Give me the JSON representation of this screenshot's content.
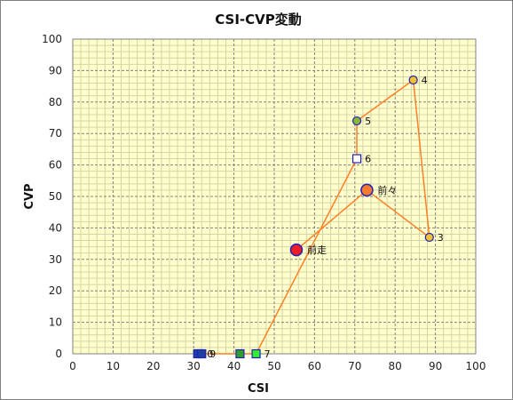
{
  "colors": {
    "plot_bg": "#ffffcc",
    "grid_major": "#808080",
    "grid_minor": "#d4d4a8",
    "line": "#ff7f27",
    "marker_edge": "#1f1fbf",
    "circle_fill": "#f2c12e",
    "circle_green": "#8ab832",
    "red": "#ee1c24",
    "orange": "#f47c2c",
    "square_blue": "#1f3f9f",
    "square_green": "#2e9f2e",
    "square_lime": "#33ee33",
    "white": "#ffffff"
  },
  "chart_data": {
    "type": "scatter",
    "title": "CSI-CVP変動",
    "xlabel": "CSI",
    "ylabel": "CVP",
    "xlim": [
      0,
      100
    ],
    "ylim": [
      0,
      100
    ],
    "x_ticks": [
      "0",
      "10",
      "20",
      "30",
      "40",
      "50",
      "60",
      "70",
      "80",
      "90",
      "100"
    ],
    "y_ticks": [
      "0",
      "10",
      "20",
      "30",
      "40",
      "50",
      "60",
      "70",
      "80",
      "90",
      "100"
    ],
    "grid": true,
    "path": [
      {
        "x": 55.5,
        "y": 33
      },
      {
        "x": 73,
        "y": 52
      },
      {
        "x": 88.5,
        "y": 37
      },
      {
        "x": 84.5,
        "y": 87
      },
      {
        "x": 70.5,
        "y": 74
      },
      {
        "x": 70.5,
        "y": 62
      },
      {
        "x": 45.5,
        "y": 0
      },
      {
        "x": 41.5,
        "y": 0
      },
      {
        "x": 32,
        "y": 0
      },
      {
        "x": 31,
        "y": 0
      }
    ],
    "points": [
      {
        "label": "前走",
        "x": 55.5,
        "y": 33,
        "marker": "circle-large",
        "fill": "red"
      },
      {
        "label": "前々",
        "x": 73,
        "y": 52,
        "marker": "circle-large",
        "fill": "orange"
      },
      {
        "label": "3",
        "x": 88.5,
        "y": 37,
        "marker": "circle",
        "fill": "circle_fill"
      },
      {
        "label": "4",
        "x": 84.5,
        "y": 87,
        "marker": "circle",
        "fill": "circle_fill"
      },
      {
        "label": "5",
        "x": 70.5,
        "y": 74,
        "marker": "circle",
        "fill": "circle_green"
      },
      {
        "label": "6",
        "x": 70.5,
        "y": 62,
        "marker": "square",
        "fill": "white"
      },
      {
        "label": "7",
        "x": 45.5,
        "y": 0,
        "marker": "square",
        "fill": "square_lime"
      },
      {
        "label": "",
        "x": 41.5,
        "y": 0,
        "marker": "square",
        "fill": "square_green"
      },
      {
        "label": "9",
        "x": 32,
        "y": 0,
        "marker": "square",
        "fill": "square_blue"
      },
      {
        "label": "",
        "x": 31,
        "y": 0,
        "marker": "square",
        "fill": "square_blue"
      }
    ],
    "overlap_label": "0"
  }
}
